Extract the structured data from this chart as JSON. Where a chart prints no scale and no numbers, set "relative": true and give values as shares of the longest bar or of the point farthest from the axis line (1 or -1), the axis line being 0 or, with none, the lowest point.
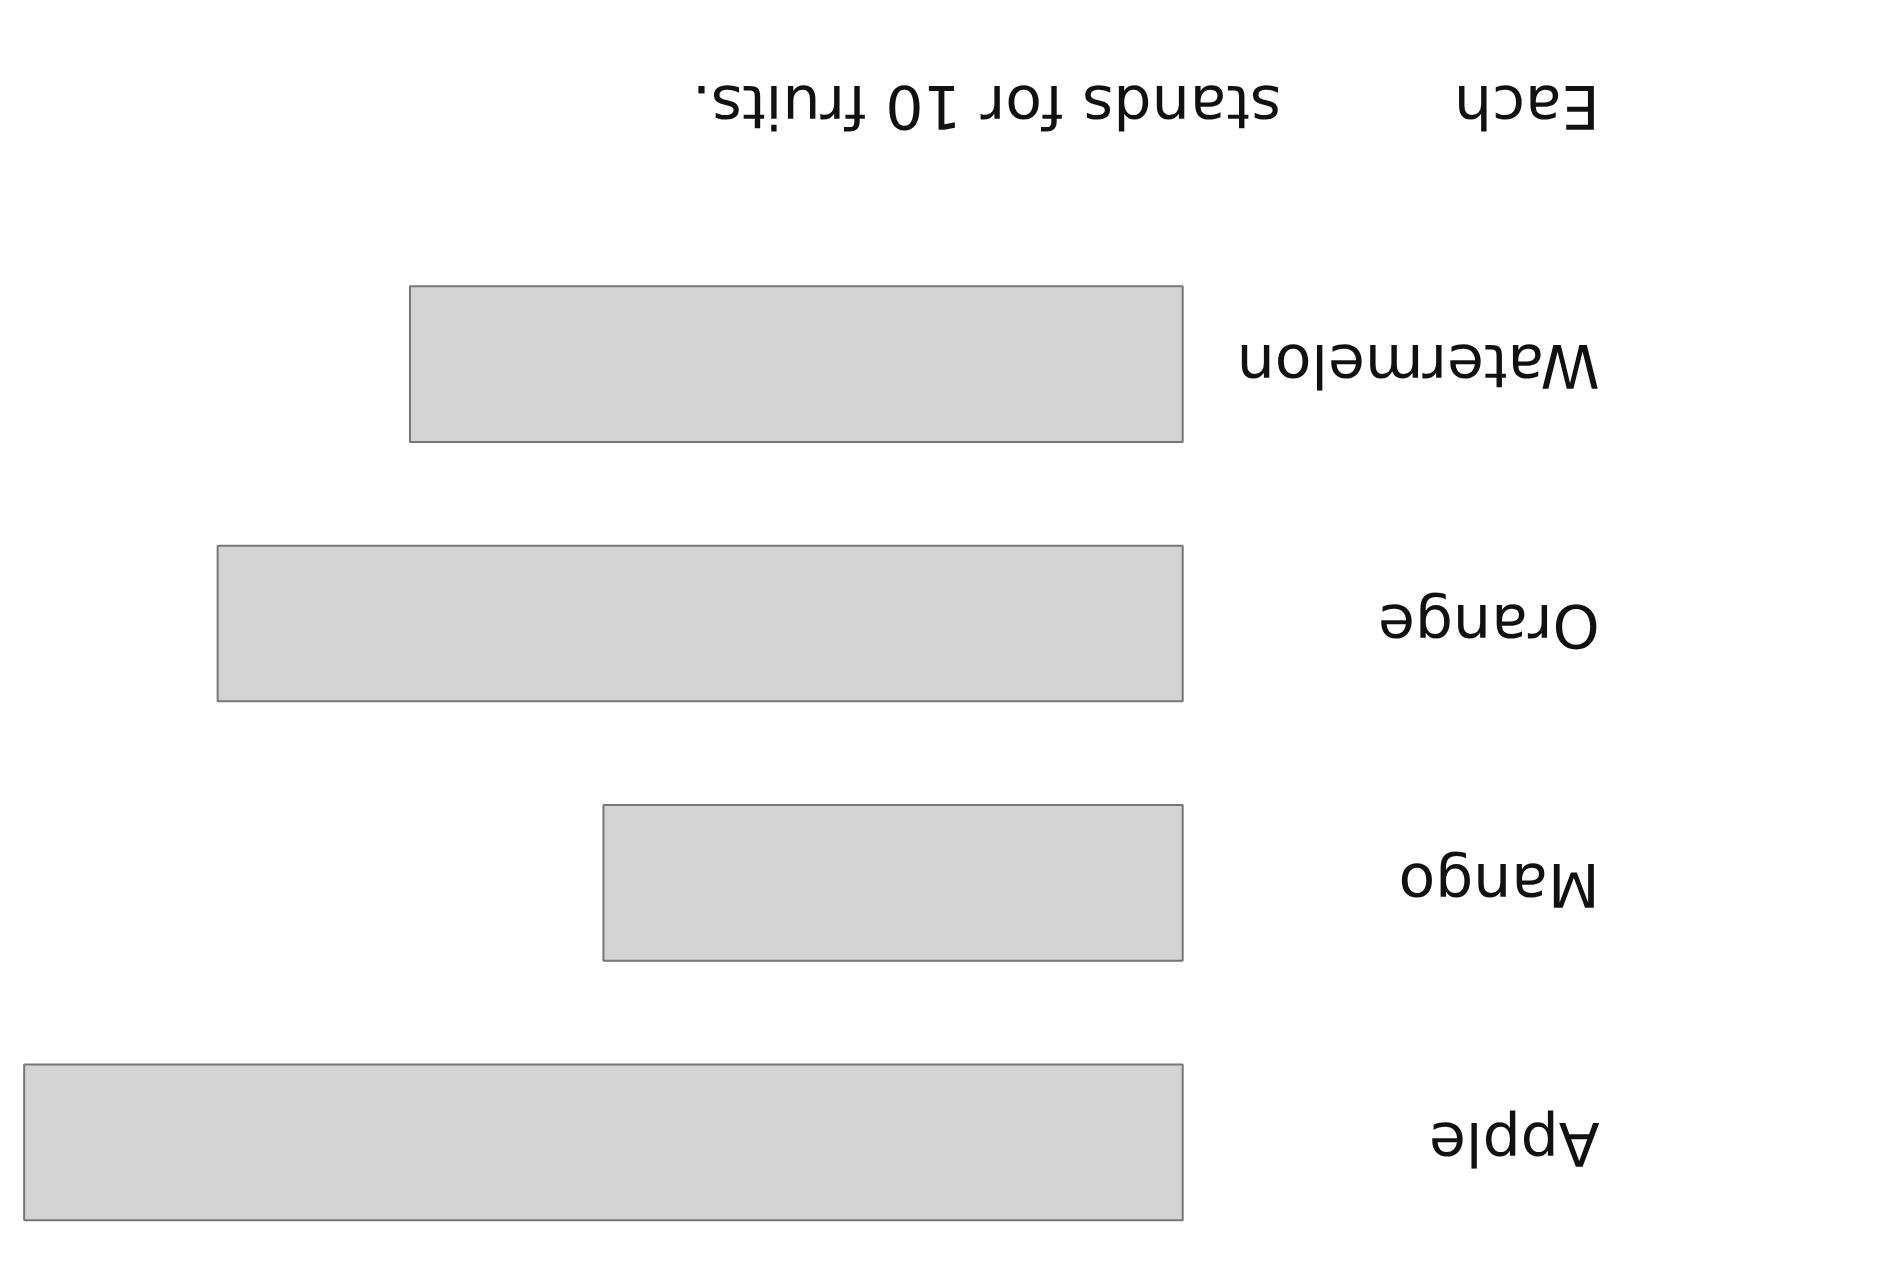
{
  "chart_data": {
    "type": "bar",
    "orientation": "horizontal",
    "relative": true,
    "categories": [
      "Watermelon",
      "Orange",
      "Mango",
      "Apple"
    ],
    "values": [
      0.667,
      0.833,
      0.5,
      1
    ],
    "color": "#d4d4d4",
    "annotations": [
      "Each",
      "stands for 10 fruits."
    ]
  }
}
